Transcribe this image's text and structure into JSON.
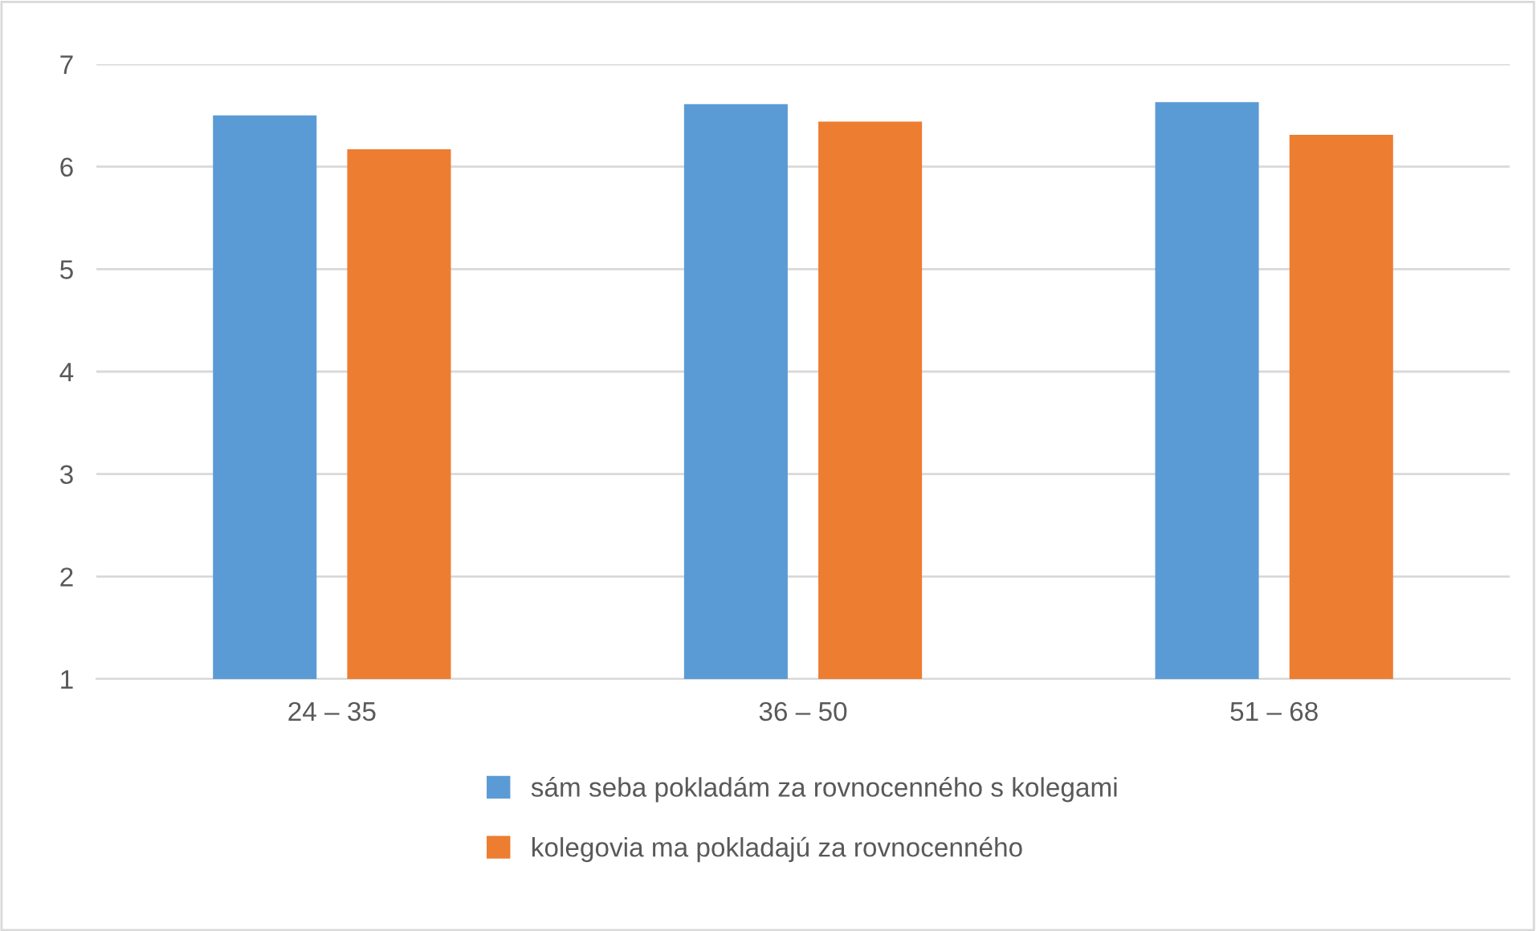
{
  "chart_data": {
    "type": "bar",
    "categories": [
      "24 – 35",
      "36 – 50",
      "51 – 68"
    ],
    "series": [
      {
        "name": "sám seba pokladám za rovnocenného s kolegami",
        "color": "#5b9bd5",
        "values": [
          6.5,
          6.61,
          6.63
        ]
      },
      {
        "name": "kolegovia ma pokladajú za rovnocenného",
        "color": "#ed7d31",
        "values": [
          6.17,
          6.44,
          6.31
        ]
      }
    ],
    "ylim": [
      1,
      7
    ],
    "yticks": [
      1,
      2,
      3,
      4,
      5,
      6,
      7
    ],
    "grid": "y",
    "legend": "bottom"
  }
}
